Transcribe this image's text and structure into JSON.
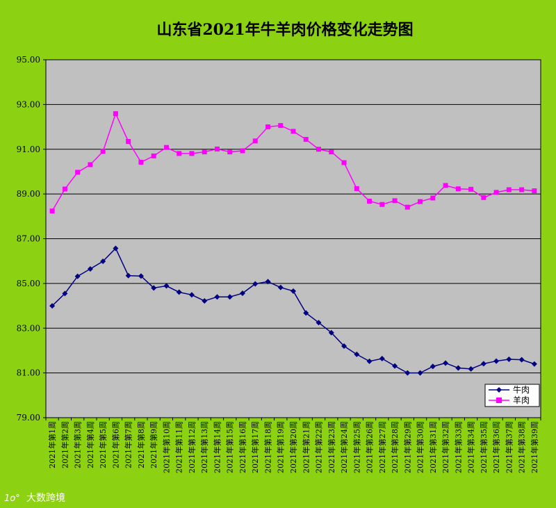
{
  "chart_data": {
    "type": "line",
    "title": "山东省2021年牛羊肉价格变化走势图",
    "xlabel": "",
    "ylabel": "",
    "ylim": [
      79.0,
      95.0
    ],
    "yticks": [
      79.0,
      81.0,
      83.0,
      85.0,
      87.0,
      89.0,
      91.0,
      93.0,
      95.0
    ],
    "ytick_labels": [
      "79.00",
      "81.00",
      "83.00",
      "85.00",
      "87.00",
      "89.00",
      "91.00",
      "93.00",
      "95.00"
    ],
    "grid": true,
    "legend_position": "bottom-right",
    "categories": [
      "2021年第1周",
      "2021年第2周",
      "2021年第3周",
      "2021年第4周",
      "2021年第5周",
      "2021年第6周",
      "2021年第7周",
      "2021年第8周",
      "2021年第9周",
      "2021年第10周",
      "2021年第11周",
      "2021年第12周",
      "2021年第13周",
      "2021年第14周",
      "2021年第15周",
      "2021年第16周",
      "2021年第17周",
      "2021年第18周",
      "2021年第19周",
      "2021年第20周",
      "2021年第21周",
      "2021年第22周",
      "2021年第23周",
      "2021年第24周",
      "2021年第25周",
      "2021年第26周",
      "2021年第27周",
      "2021年第28周",
      "2021年第29周",
      "2021年第30周",
      "2021年第31周",
      "2021年第32周",
      "2021年第33周",
      "2021年第34周",
      "2021年第35周",
      "2021年第36周",
      "2021年第37周",
      "2021年第38周",
      "2021年第39周"
    ],
    "series": [
      {
        "name": "牛肉",
        "color": "#000080",
        "marker": "diamond",
        "values": [
          84.0,
          84.55,
          85.32,
          85.65,
          85.99,
          86.57,
          85.35,
          85.33,
          84.8,
          84.89,
          84.61,
          84.49,
          84.22,
          84.4,
          84.4,
          84.56,
          84.98,
          85.08,
          84.82,
          84.66,
          83.68,
          83.25,
          82.8,
          82.2,
          81.83,
          81.52,
          81.64,
          81.31,
          81.0,
          81.0,
          81.29,
          81.44,
          81.22,
          81.18,
          81.41,
          81.53,
          81.61,
          81.59,
          81.4
        ]
      },
      {
        "name": "羊肉",
        "color": "#ff00ff",
        "marker": "square",
        "values": [
          88.24,
          89.22,
          89.97,
          90.31,
          90.9,
          92.59,
          91.35,
          90.42,
          90.7,
          91.08,
          90.81,
          90.81,
          90.88,
          91.01,
          90.88,
          90.93,
          91.37,
          92.0,
          92.06,
          91.8,
          91.44,
          91.0,
          90.88,
          90.4,
          89.24,
          88.68,
          88.53,
          88.7,
          88.41,
          88.66,
          88.82,
          89.38,
          89.23,
          89.21,
          88.84,
          89.07,
          89.19,
          89.19,
          89.14
        ]
      }
    ]
  },
  "watermark": {
    "logo_text": "1o°",
    "text": "大数跨境"
  }
}
